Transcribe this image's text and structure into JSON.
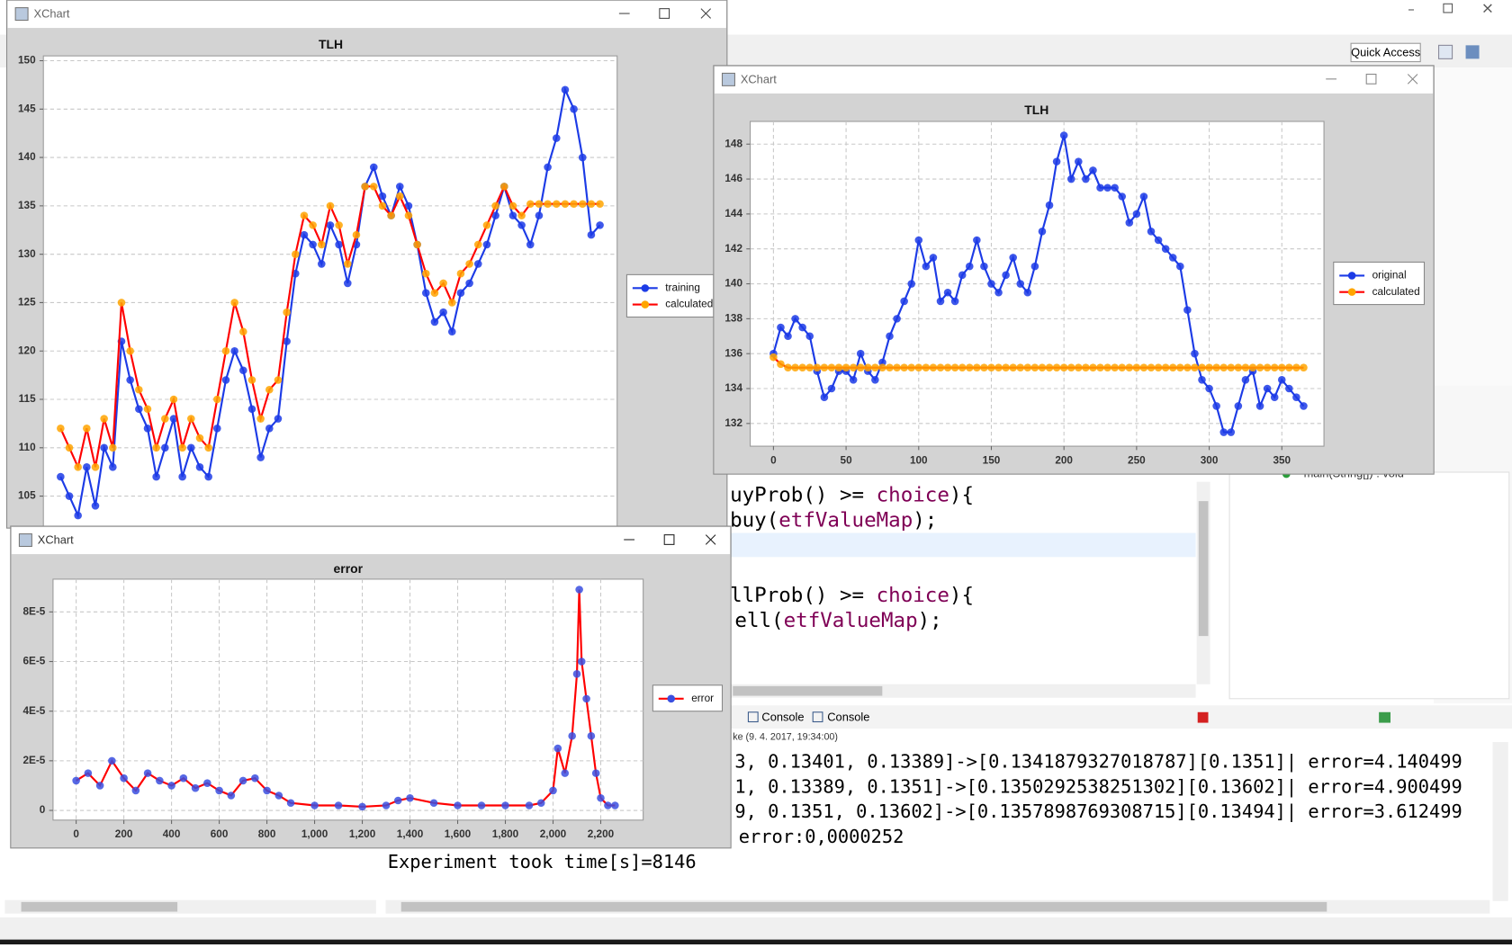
{
  "window_titles": [
    "XChart",
    "XChart",
    "XChart"
  ],
  "ide": {
    "quick_access": "Quick Access",
    "outline_item": "main(String[]) : void",
    "code_lines": [
      [
        "uyProb() >= ",
        "choice",
        "){"
      ],
      [
        "buy(",
        "etfValueMap",
        ");"
      ],
      [
        "llProb() >= ",
        "choice",
        "){"
      ],
      [
        "ell(",
        "etfValueMap",
        ");"
      ]
    ],
    "tabs": [
      "Console",
      "Console"
    ],
    "console_header": "ke (9. 4. 2017, 19:34:00)",
    "console_lines": [
      "3, 0.13401, 0.13389]->[0.1341879327018787][0.1351]| error=4.140499",
      "1, 0.13389, 0.1351]->[0.1350292538251302][0.13602]| error=4.900499",
      "9, 0.1351, 0.13602]->[0.1357898769308715][0.13494]| error=3.612499",
      "error:0,0000252",
      "Experiment took time[s]=8146"
    ]
  },
  "chart_data": [
    {
      "type": "line",
      "title": "TLH",
      "ylim": [
        100.5,
        150.5
      ],
      "yticks": [
        105,
        110,
        115,
        120,
        125,
        130,
        135,
        140,
        145,
        150
      ],
      "grid": true,
      "legend": "right",
      "series": [
        {
          "name": "training",
          "color": "#1c3be6",
          "marker_color": "#1c3be6",
          "values": [
            107,
            105,
            103,
            108,
            104,
            110,
            108,
            121,
            117,
            114,
            112,
            107,
            110,
            113,
            107,
            110,
            108,
            107,
            112,
            117,
            120,
            118,
            114,
            109,
            112,
            113,
            121,
            128,
            132,
            131,
            129,
            133,
            131,
            127,
            131,
            137,
            139,
            136,
            134,
            137,
            135,
            131,
            126,
            123,
            124,
            122,
            126,
            127,
            129,
            131,
            134,
            137,
            134,
            133,
            131,
            134,
            139,
            142,
            147,
            145,
            140,
            132,
            133
          ]
        },
        {
          "name": "calculated",
          "color": "#ff0000",
          "marker_color": "#ffa500",
          "values": [
            112,
            110,
            108,
            112,
            108,
            113,
            110,
            125,
            120,
            116,
            114,
            110,
            113,
            115,
            110,
            113,
            111,
            110,
            115,
            120,
            125,
            122,
            117,
            113,
            116,
            117,
            124,
            130,
            134,
            133,
            131,
            135,
            133,
            129,
            132,
            137,
            137,
            135,
            134,
            136,
            134,
            131,
            128,
            126,
            127,
            125,
            128,
            129,
            131,
            133,
            135,
            137,
            135,
            134,
            135.2,
            135.2,
            135.2,
            135.2,
            135.2,
            135.2,
            135.2,
            135.2,
            135.2
          ]
        }
      ]
    },
    {
      "type": "line",
      "title": "TLH",
      "xlim": [
        -16,
        379
      ],
      "ylim": [
        130.7,
        149.3
      ],
      "xticks": [
        0,
        50,
        100,
        150,
        200,
        250,
        300,
        350
      ],
      "yticks": [
        132,
        134,
        136,
        138,
        140,
        142,
        144,
        146,
        148
      ],
      "grid": true,
      "legend": "right",
      "x": [
        0,
        5,
        10,
        15,
        20,
        25,
        30,
        35,
        40,
        45,
        50,
        55,
        60,
        65,
        70,
        75,
        80,
        85,
        90,
        95,
        100,
        105,
        110,
        115,
        120,
        125,
        130,
        135,
        140,
        145,
        150,
        155,
        160,
        165,
        170,
        175,
        180,
        185,
        190,
        195,
        200,
        205,
        210,
        215,
        220,
        225,
        230,
        235,
        240,
        245,
        250,
        255,
        260,
        265,
        270,
        275,
        280,
        285,
        290,
        295,
        300,
        305,
        310,
        315,
        320,
        325,
        330,
        335,
        340,
        345,
        350,
        355,
        360,
        365
      ],
      "series": [
        {
          "name": "original",
          "color": "#1c3be6",
          "marker_color": "#1c3be6",
          "values": [
            136,
            137.5,
            137,
            138,
            137.5,
            137,
            135,
            133.5,
            134,
            135,
            135,
            134.5,
            136,
            135,
            134.5,
            135.5,
            137,
            138,
            139,
            140,
            142.5,
            141,
            141.5,
            139,
            139.5,
            139,
            140.5,
            141,
            142.5,
            141,
            140,
            139.5,
            140.5,
            141.5,
            140,
            139.5,
            141,
            143,
            144.5,
            147,
            148.5,
            146,
            147,
            146,
            146.5,
            145.5,
            145.5,
            145.5,
            145,
            143.5,
            144,
            145,
            143,
            142.5,
            142,
            141.5,
            141,
            138.5,
            136,
            134.5,
            134,
            133,
            131.5,
            131.5,
            133,
            134.5,
            135,
            133,
            134,
            133.5,
            134.5,
            134,
            133.5,
            133
          ]
        },
        {
          "name": "calculated",
          "color": "#ff0000",
          "marker_color": "#ffa500",
          "values": [
            135.8,
            135.4,
            135.2,
            135.2,
            135.2,
            135.2,
            135.2,
            135.2,
            135.2,
            135.2,
            135.2,
            135.2,
            135.2,
            135.2,
            135.2,
            135.2,
            135.2,
            135.2,
            135.2,
            135.2,
            135.2,
            135.2,
            135.2,
            135.2,
            135.2,
            135.2,
            135.2,
            135.2,
            135.2,
            135.2,
            135.2,
            135.2,
            135.2,
            135.2,
            135.2,
            135.2,
            135.2,
            135.2,
            135.2,
            135.2,
            135.2,
            135.2,
            135.2,
            135.2,
            135.2,
            135.2,
            135.2,
            135.2,
            135.2,
            135.2,
            135.2,
            135.2,
            135.2,
            135.2,
            135.2,
            135.2,
            135.2,
            135.2,
            135.2,
            135.2,
            135.2,
            135.2,
            135.2,
            135.2,
            135.2,
            135.2,
            135.2,
            135.2,
            135.2,
            135.2,
            135.2,
            135.2,
            135.2,
            135.2
          ]
        }
      ]
    },
    {
      "type": "line",
      "title": "error",
      "xlim": [
        -97,
        2378
      ],
      "ylim": [
        -3.9e-06,
        9.32e-05
      ],
      "xticks": [
        0,
        200,
        400,
        600,
        800,
        {
          "value": 1000,
          "label": "1,000"
        },
        {
          "value": 1200,
          "label": "1,200"
        },
        {
          "value": 1400,
          "label": "1,400"
        },
        {
          "value": 1600,
          "label": "1,600"
        },
        {
          "value": 1800,
          "label": "1,800"
        },
        {
          "value": 2000,
          "label": "2,000"
        },
        {
          "value": 2200,
          "label": "2,200"
        }
      ],
      "yticks": [
        0,
        {
          "value": 2e-05,
          "label": "2E-5"
        },
        {
          "value": 4e-05,
          "label": "4E-5"
        },
        {
          "value": 6e-05,
          "label": "6E-5"
        },
        {
          "value": 8e-05,
          "label": "8E-5"
        }
      ],
      "grid": true,
      "legend": "right",
      "x": [
        0,
        50,
        100,
        150,
        200,
        250,
        300,
        350,
        400,
        450,
        500,
        550,
        600,
        650,
        700,
        750,
        800,
        850,
        900,
        1000,
        1100,
        1200,
        1300,
        1350,
        1400,
        1500,
        1600,
        1700,
        1800,
        1900,
        1950,
        2000,
        2020,
        2050,
        2080,
        2100,
        2110,
        2120,
        2140,
        2160,
        2180,
        2200,
        2230,
        2260
      ],
      "series": [
        {
          "name": "error",
          "color": "#ff0000",
          "marker_color": "#3a4fe0",
          "values": [
            1.2e-05,
            1.5e-05,
            1e-05,
            2e-05,
            1.3e-05,
            8e-06,
            1.5e-05,
            1.2e-05,
            1e-05,
            1.3e-05,
            9e-06,
            1.1e-05,
            8e-06,
            6e-06,
            1.2e-05,
            1.3e-05,
            8e-06,
            6e-06,
            3e-06,
            2e-06,
            2e-06,
            1.5e-06,
            2e-06,
            4e-06,
            5e-06,
            3e-06,
            2e-06,
            2e-06,
            2e-06,
            2e-06,
            3e-06,
            8e-06,
            2.5e-05,
            1.5e-05,
            3e-05,
            5.5e-05,
            8.9e-05,
            6e-05,
            4.5e-05,
            3e-05,
            1.5e-05,
            5e-06,
            2e-06,
            2e-06
          ]
        }
      ]
    }
  ]
}
